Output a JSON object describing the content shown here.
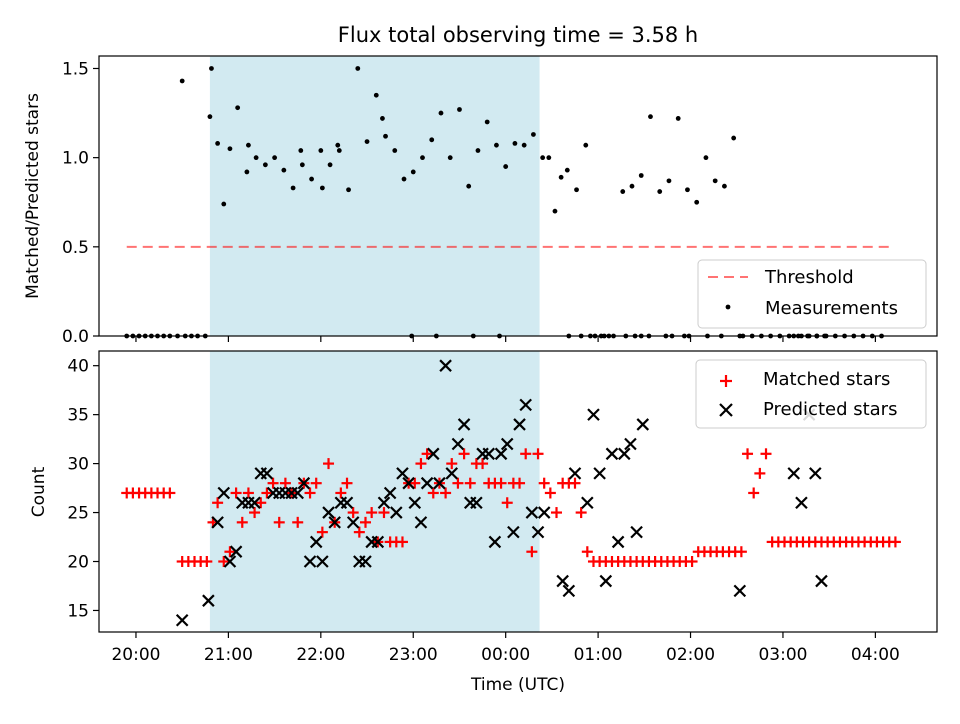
{
  "title": "Flux total observing time = 3.58 h",
  "colors": {
    "shade": "#add8e6",
    "threshold": "#ff0000",
    "measurement": "#000000",
    "matched": "#ff0000",
    "predicted": "#000000"
  },
  "chart_data": [
    {
      "type": "scatter",
      "panel": "top",
      "ylabel": "Matched/Predicted stars",
      "ylim": [
        0,
        1.57
      ],
      "yticks": [
        "0.0",
        "0.5",
        "1.0",
        "1.5"
      ],
      "ytick_values": [
        0.0,
        0.5,
        1.0,
        1.5
      ],
      "xlim": [
        "19:36",
        "04:40"
      ],
      "shaded_interval": [
        "20:48",
        "00:22"
      ],
      "threshold": {
        "label": "Threshold",
        "value": 0.5,
        "x_range": [
          "19:54",
          "04:09"
        ]
      },
      "legend": {
        "position": "lower right",
        "entries": [
          "Threshold",
          "Measurements"
        ]
      },
      "series": [
        {
          "name": "Measurements",
          "x": [
            "19:54",
            "19:58",
            "20:02",
            "20:06",
            "20:10",
            "20:14",
            "20:18",
            "20:22",
            "20:27",
            "20:32",
            "20:36",
            "20:40",
            "20:45",
            "20:49",
            "20:53",
            "20:57",
            "21:01",
            "21:06",
            "21:12",
            "21:18",
            "21:24",
            "21:30",
            "21:36",
            "21:42",
            "21:48",
            "21:54",
            "22:00",
            "22:06",
            "22:12",
            "22:18",
            "22:24",
            "22:30",
            "22:36",
            "22:42",
            "22:48",
            "22:54",
            "23:00",
            "23:06",
            "23:12",
            "23:18",
            "23:24",
            "23:30",
            "23:36",
            "23:42",
            "23:48",
            "23:54",
            "00:00",
            "00:06",
            "00:12",
            "00:18",
            "00:24",
            "00:28",
            "00:32",
            "00:36",
            "00:40",
            "00:46",
            "00:52",
            "00:58",
            "01:04",
            "01:10",
            "01:16",
            "01:22",
            "01:28",
            "01:34",
            "01:40",
            "01:46",
            "01:52",
            "01:58",
            "02:04",
            "02:10",
            "02:16",
            "02:22",
            "02:28",
            "02:34",
            "02:40",
            "02:46",
            "02:52",
            "02:58",
            "03:04",
            "03:10",
            "03:16",
            "03:22",
            "03:28",
            "03:34",
            "03:40",
            "03:46",
            "03:52",
            "03:58",
            "04:04",
            "20:30",
            "20:48",
            "21:13",
            "21:47",
            "22:01",
            "22:11",
            "22:40",
            "22:59",
            "23:15",
            "23:39",
            "23:56",
            "00:41",
            "00:49",
            "00:55",
            "01:02",
            "01:07",
            "01:18",
            "01:24",
            "01:28",
            "01:33",
            "01:44",
            "01:48",
            "01:56",
            "01:59",
            "02:11",
            "02:20",
            "02:32",
            "03:07",
            "03:12",
            "03:17",
            "03:22",
            "03:27"
          ],
          "y": [
            0,
            0,
            0,
            0,
            0,
            0,
            0,
            0,
            0,
            0,
            0,
            0,
            0,
            1.5,
            1.08,
            0.74,
            1.05,
            1.28,
            0.92,
            1.0,
            0.96,
            1.0,
            0.93,
            0.83,
            0.96,
            0.88,
            1.04,
            0.96,
            1.04,
            0.82,
            1.5,
            1.09,
            1.35,
            1.12,
            1.04,
            0.88,
            0.92,
            1.0,
            1.1,
            1.25,
            1.0,
            1.27,
            0.84,
            1.04,
            1.2,
            1.07,
            0.95,
            1.08,
            1.07,
            1.13,
            1.0,
            1.0,
            0.7,
            0.89,
            0.93,
            0.82,
            1.07,
            0,
            0,
            0,
            0.81,
            0.84,
            0.9,
            1.23,
            0.81,
            0.87,
            1.22,
            0.82,
            0.75,
            1.0,
            0.87,
            0.84,
            1.11,
            0,
            0,
            0,
            0,
            0,
            0,
            0,
            0,
            0,
            0,
            0,
            0,
            0,
            0,
            0,
            0,
            1.43,
            1.23,
            1.07,
            1.04,
            0.83,
            1.07,
            1.22,
            0,
            0,
            0,
            0,
            0,
            0,
            0,
            0,
            0,
            0,
            0,
            0,
            0,
            0,
            0,
            0,
            0,
            0,
            0,
            0,
            0,
            0,
            0,
            0,
            0
          ]
        }
      ]
    },
    {
      "type": "scatter",
      "panel": "bottom",
      "xlabel": "Time (UTC)",
      "ylabel": "Count",
      "ylim": [
        12.8,
        41.5
      ],
      "yticks": [
        "15",
        "20",
        "25",
        "30",
        "35",
        "40"
      ],
      "ytick_values": [
        15,
        20,
        25,
        30,
        35,
        40
      ],
      "xlim": [
        "19:36",
        "04:40"
      ],
      "xticks": [
        "20:00",
        "21:00",
        "22:00",
        "23:00",
        "00:00",
        "01:00",
        "02:00",
        "03:00",
        "04:00"
      ],
      "shaded_interval": [
        "20:48",
        "00:22"
      ],
      "legend": {
        "position": "upper right",
        "entries": [
          "Matched stars",
          "Predicted stars"
        ]
      },
      "series": [
        {
          "name": "Matched stars",
          "marker": "plus",
          "x": [
            "19:54",
            "19:58",
            "20:02",
            "20:06",
            "20:10",
            "20:14",
            "20:18",
            "20:22",
            "20:30",
            "20:34",
            "20:38",
            "20:42",
            "20:46",
            "20:50",
            "20:53",
            "20:57",
            "21:01",
            "21:05",
            "21:09",
            "21:13",
            "21:17",
            "21:21",
            "21:25",
            "21:29",
            "21:33",
            "21:37",
            "21:41",
            "21:45",
            "21:49",
            "21:53",
            "21:57",
            "22:01",
            "22:05",
            "22:09",
            "22:13",
            "22:17",
            "22:21",
            "22:25",
            "22:29",
            "22:33",
            "22:37",
            "22:41",
            "22:45",
            "22:49",
            "22:53",
            "22:57",
            "23:01",
            "23:05",
            "23:09",
            "23:13",
            "23:17",
            "23:21",
            "23:25",
            "23:29",
            "23:33",
            "23:37",
            "23:41",
            "23:45",
            "23:49",
            "23:53",
            "23:57",
            "00:01",
            "00:05",
            "00:09",
            "00:13",
            "00:17",
            "00:21",
            "00:25",
            "00:29",
            "00:33",
            "00:37",
            "00:41",
            "00:45",
            "00:49",
            "00:53",
            "00:57",
            "01:01",
            "01:05",
            "01:09",
            "01:13",
            "01:17",
            "01:21",
            "01:25",
            "01:29",
            "01:33",
            "01:37",
            "01:41",
            "01:45",
            "01:49",
            "01:53",
            "01:57",
            "02:01",
            "02:05",
            "02:09",
            "02:13",
            "02:17",
            "02:21",
            "02:25",
            "02:29",
            "02:33",
            "02:37",
            "02:41",
            "02:45",
            "02:49",
            "02:53",
            "02:57",
            "03:01",
            "03:05",
            "03:09",
            "03:13",
            "03:17",
            "03:21",
            "03:25",
            "03:29",
            "03:33",
            "03:37",
            "03:41",
            "03:45",
            "03:49",
            "03:53",
            "03:57",
            "04:01",
            "04:05",
            "04:09",
            "04:13"
          ],
          "y": [
            27,
            27,
            27,
            27,
            27,
            27,
            27,
            27,
            20,
            20,
            20,
            20,
            20,
            24,
            26,
            20,
            21,
            27,
            24,
            27,
            25,
            26,
            27,
            28,
            24,
            28,
            27,
            24,
            28,
            27,
            28,
            23,
            30,
            24,
            27,
            28,
            25,
            23,
            24,
            25,
            22,
            25,
            22,
            22,
            22,
            28,
            28,
            30,
            31,
            27,
            28,
            27,
            30,
            28,
            31,
            28,
            30,
            30,
            28,
            28,
            28,
            26,
            28,
            28,
            31,
            21,
            31,
            28,
            27,
            25,
            28,
            28,
            28,
            25,
            21,
            20,
            20,
            20,
            20,
            20,
            20,
            20,
            20,
            20,
            20,
            20,
            20,
            20,
            20,
            20,
            20,
            20,
            21,
            21,
            21,
            21,
            21,
            21,
            21,
            21,
            31,
            27,
            29,
            31,
            22,
            22,
            22,
            22,
            22,
            22,
            22,
            22,
            22,
            22,
            22,
            22,
            22,
            22,
            22,
            22,
            22,
            22,
            22,
            22,
            22
          ]
        },
        {
          "name": "Predicted stars",
          "marker": "x",
          "x": [
            "20:30",
            "20:47",
            "20:53",
            "20:57",
            "21:01",
            "21:05",
            "21:09",
            "21:13",
            "21:17",
            "21:21",
            "21:25",
            "21:29",
            "21:33",
            "21:37",
            "21:41",
            "21:45",
            "21:49",
            "21:53",
            "21:57",
            "22:01",
            "22:05",
            "22:09",
            "22:13",
            "22:17",
            "22:21",
            "22:25",
            "22:29",
            "22:33",
            "22:37",
            "22:41",
            "22:45",
            "22:49",
            "22:53",
            "22:57",
            "23:01",
            "23:05",
            "23:09",
            "23:13",
            "23:17",
            "23:21",
            "23:25",
            "23:29",
            "23:33",
            "23:37",
            "23:41",
            "23:45",
            "23:49",
            "23:53",
            "23:57",
            "00:01",
            "00:05",
            "00:09",
            "00:13",
            "00:17",
            "00:21",
            "00:25",
            "00:37",
            "00:41",
            "00:45",
            "00:53",
            "00:57",
            "01:01",
            "01:05",
            "01:09",
            "01:13",
            "01:17",
            "01:21",
            "01:25",
            "01:29",
            "02:32",
            "03:07",
            "03:12",
            "03:17",
            "03:21",
            "03:25"
          ],
          "y": [
            14,
            16,
            24,
            27,
            20,
            21,
            26,
            26,
            26,
            29,
            29,
            27,
            27,
            27,
            27,
            27,
            28,
            20,
            22,
            20,
            25,
            24,
            26,
            26,
            24,
            20,
            20,
            22,
            22,
            26,
            27,
            25,
            29,
            28,
            26,
            24,
            28,
            31,
            28,
            40,
            29,
            32,
            34,
            26,
            26,
            31,
            31,
            22,
            31,
            32,
            23,
            34,
            36,
            25,
            23,
            25,
            18,
            17,
            29,
            26,
            35,
            29,
            18,
            31,
            22,
            31,
            32,
            23,
            34,
            17,
            29,
            26,
            35,
            29,
            18
          ]
        }
      ]
    }
  ]
}
